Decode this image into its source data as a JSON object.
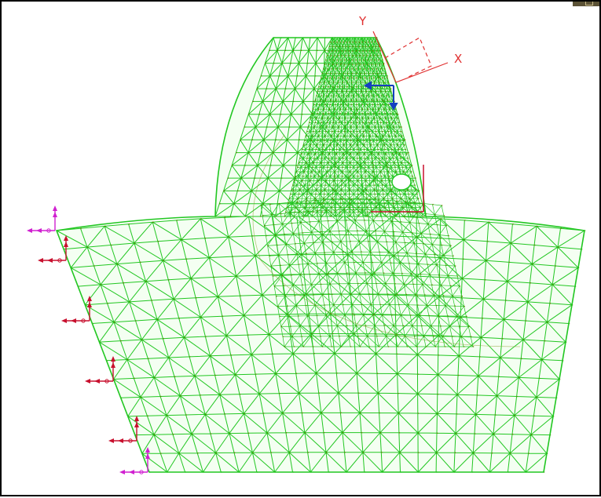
{
  "axes": {
    "y_label": "Y",
    "x_label": "X"
  },
  "colors": {
    "mesh": "#22c722",
    "node": "#7a6a00",
    "triad": "#e03030",
    "local_csys": "#1540c0",
    "constraint_red": "#c8102e",
    "constraint_magenta": "#d020d0",
    "hole": "#ffffff"
  },
  "icons": {
    "corner": "window-control-icon",
    "constraint": "constraint-arrow-icon",
    "triad": "coordinate-triad-icon"
  }
}
